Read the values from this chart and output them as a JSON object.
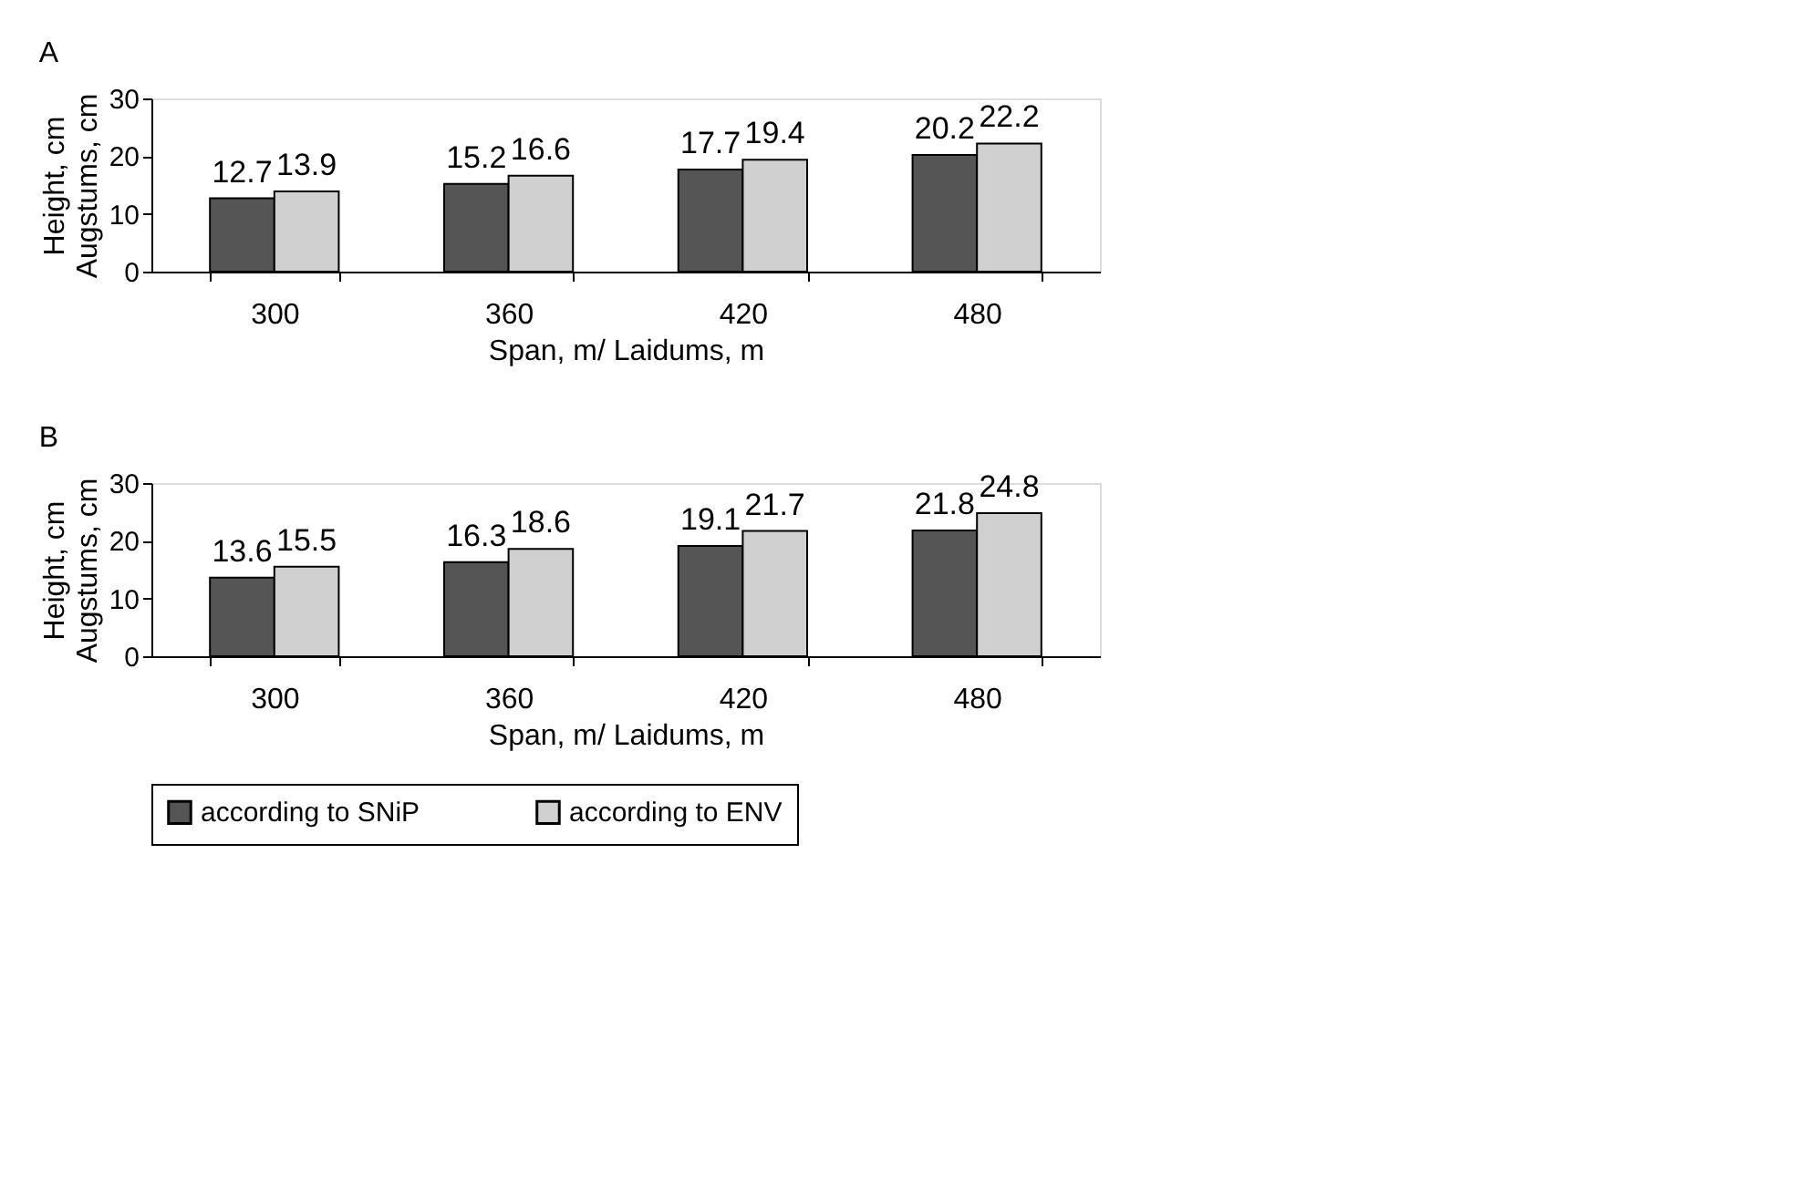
{
  "chart_data": [
    {
      "type": "bar",
      "title": "A",
      "xlabel": "Span, m/ Laidums, m",
      "ylabel": "Height, cm\nAugstums, cm",
      "categories": [
        "300",
        "360",
        "420",
        "480"
      ],
      "series": [
        {
          "name": "according to SNiP",
          "color": "#555555",
          "values": [
            12.7,
            15.2,
            17.7,
            20.2
          ]
        },
        {
          "name": "according to ENV",
          "color": "#d0d0d0",
          "values": [
            13.9,
            16.6,
            19.4,
            22.2
          ]
        }
      ],
      "ylim": [
        0,
        30
      ],
      "yticks": [
        0,
        10,
        20,
        30
      ],
      "data_labels": true,
      "grid": false,
      "legend": "bottom"
    },
    {
      "type": "bar",
      "title": "B",
      "xlabel": "Span, m/ Laidums, m",
      "ylabel": "Height, cm\nAugstums, cm",
      "categories": [
        "300",
        "360",
        "420",
        "480"
      ],
      "series": [
        {
          "name": "according to SNiP",
          "color": "#555555",
          "values": [
            13.6,
            16.3,
            19.1,
            21.8
          ]
        },
        {
          "name": "according to ENV",
          "color": "#d0d0d0",
          "values": [
            15.5,
            18.6,
            21.7,
            24.8
          ]
        }
      ],
      "ylim": [
        0,
        30
      ],
      "yticks": [
        0,
        10,
        20,
        30
      ],
      "data_labels": true,
      "grid": false,
      "legend": "bottom"
    }
  ]
}
